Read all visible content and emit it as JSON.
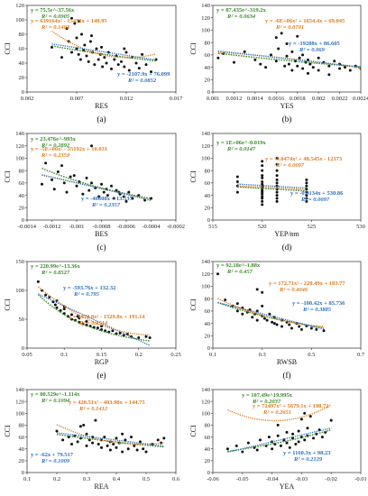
{
  "colors": {
    "green": "#3a8a2a",
    "orange": "#e07a1c",
    "blue": "#2b6fbf",
    "point": "#111111",
    "grid": "#dddddd"
  },
  "ylabel": "CCI",
  "chart_data": [
    {
      "type": "scatter",
      "panel": "(a)",
      "xlabel": "RES",
      "xlim": [
        0.002,
        0.017
      ],
      "ylim": [
        0,
        120
      ],
      "xticks": [
        "0.002",
        "0.007",
        "0.012",
        "0.017"
      ],
      "yticks": [
        "0",
        "20",
        "40",
        "60",
        "80",
        "100",
        "120"
      ],
      "equations": [
        {
          "color": "green",
          "fit": "exp",
          "text": "y = 75.5e^-37.56x",
          "r2": "R² = 0.0905",
          "a": 75.5,
          "b": -37.56
        },
        {
          "color": "orange",
          "fit": "poly",
          "text": "y = 639164x² - 15453x + 140.95",
          "r2": "R² = 0.1403",
          "coef": [
            140.95,
            -15453,
            639164
          ]
        },
        {
          "color": "blue",
          "fit": "lin",
          "text": "y = -2107.9x + 76.099",
          "r2": "R² = 0.0852",
          "coef": [
            76.099,
            -2107.9
          ]
        }
      ],
      "x": [
        0.0045,
        0.0055,
        0.006,
        0.0062,
        0.0065,
        0.0068,
        0.007,
        0.007,
        0.0072,
        0.0074,
        0.0075,
        0.0077,
        0.0078,
        0.008,
        0.0082,
        0.0084,
        0.0086,
        0.0088,
        0.009,
        0.0092,
        0.0094,
        0.0096,
        0.0098,
        0.01,
        0.0102,
        0.0105,
        0.0108,
        0.011,
        0.0112,
        0.0115,
        0.0118,
        0.012,
        0.0123,
        0.0126,
        0.013,
        0.0133,
        0.0136,
        0.014,
        0.0145,
        0.015,
        0.0065,
        0.0072,
        0.0085,
        0.0095,
        0.0118
      ],
      "y": [
        62,
        48,
        88,
        70,
        55,
        95,
        60,
        75,
        52,
        45,
        80,
        58,
        65,
        50,
        42,
        70,
        55,
        38,
        60,
        45,
        52,
        35,
        48,
        40,
        55,
        32,
        45,
        50,
        38,
        42,
        35,
        55,
        30,
        48,
        40,
        33,
        52,
        38,
        28,
        45,
        102,
        98,
        78,
        62,
        60
      ]
    },
    {
      "type": "scatter",
      "panel": "(b)",
      "xlabel": "YES",
      "xlim": [
        0.001,
        0.0024
      ],
      "ylim": [
        0,
        140
      ],
      "xticks": [
        "0.001",
        "0.0012",
        "0.0014",
        "0.0016",
        "0.0018",
        "0.002",
        "0.0022",
        "0.0024"
      ],
      "yticks": [
        "0",
        "20",
        "40",
        "60",
        "80",
        "100",
        "120",
        "140"
      ],
      "equations": [
        {
          "color": "green",
          "fit": "exp",
          "text": "y = 87.435e^-319.2x",
          "r2": "R² = 0.0634",
          "a": 87.435,
          "b": -319.2
        },
        {
          "color": "orange",
          "fit": "poly",
          "text": "y = -6E+06x² + 1654.4x + 69.045",
          "r2": "R² = 0.0701",
          "coef": [
            69.045,
            1654.4,
            -6000000
          ]
        },
        {
          "color": "blue",
          "fit": "lin",
          "text": "y = -19288x + 86.605",
          "r2": "R² = 0.069",
          "coef": [
            86.605,
            -19288
          ]
        }
      ],
      "x": [
        0.00105,
        0.0011,
        0.0012,
        0.0013,
        0.0014,
        0.00145,
        0.0015,
        0.00155,
        0.0016,
        0.0016,
        0.00162,
        0.00165,
        0.00168,
        0.0017,
        0.0017,
        0.00172,
        0.00175,
        0.00175,
        0.00178,
        0.0018,
        0.0018,
        0.00182,
        0.00185,
        0.00185,
        0.00188,
        0.0019,
        0.0019,
        0.00192,
        0.00195,
        0.002,
        0.002,
        0.00205,
        0.0021,
        0.0021,
        0.00215,
        0.0022,
        0.0022,
        0.00225,
        0.0023,
        0.00235,
        0.0024
      ],
      "y": [
        55,
        62,
        48,
        65,
        52,
        45,
        40,
        60,
        88,
        50,
        70,
        95,
        42,
        58,
        78,
        45,
        65,
        35,
        50,
        90,
        42,
        55,
        60,
        38,
        48,
        52,
        30,
        45,
        40,
        55,
        35,
        48,
        42,
        28,
        50,
        38,
        45,
        40,
        35,
        42,
        38
      ]
    },
    {
      "type": "scatter",
      "panel": "(c)",
      "xlabel": "BES",
      "xlim": [
        -0.0014,
        -0.0002
      ],
      "ylim": [
        0,
        140
      ],
      "xticks": [
        "-0.0014",
        "-0.0012",
        "-0.001",
        "-0.0008",
        "-0.0006",
        "-0.0004",
        "-0.0002"
      ],
      "yticks": [
        "0",
        "20",
        "40",
        "60",
        "80",
        "100",
        "120",
        "140"
      ],
      "equations": [
        {
          "color": "green",
          "fit": "exp",
          "text": "y = 23.476e^-993x",
          "r2": "R² = 0.2892",
          "a": 23.476,
          "b": -993
        },
        {
          "color": "orange",
          "fit": "poly",
          "text": "y = -5E+06x² - 55192x + 10.031",
          "r2": "R² = 0.2359",
          "coef": [
            10.031,
            -55192,
            -5000000
          ]
        },
        {
          "color": "blue",
          "fit": "lin",
          "text": "y = -46608x + 13.537",
          "r2": "R² = 0.2357",
          "coef": [
            13.537,
            -46608
          ]
        }
      ],
      "x": [
        -0.00128,
        -0.00125,
        -0.0012,
        -0.00118,
        -0.00115,
        -0.0011,
        -0.00108,
        -0.00105,
        -0.001,
        -0.00098,
        -0.00095,
        -0.00092,
        -0.0009,
        -0.00088,
        -0.00085,
        -0.00082,
        -0.0008,
        -0.00078,
        -0.00075,
        -0.00072,
        -0.0007,
        -0.00068,
        -0.00065,
        -0.00062,
        -0.0006,
        -0.00058,
        -0.00055,
        -0.0005,
        -0.00045,
        -0.0004,
        -0.00112,
        -0.00102,
        -0.00088,
        -0.00076,
        -0.00066
      ],
      "y": [
        58,
        92,
        65,
        50,
        78,
        60,
        45,
        70,
        55,
        62,
        42,
        68,
        48,
        120,
        52,
        38,
        58,
        45,
        40,
        55,
        35,
        48,
        42,
        38,
        30,
        45,
        35,
        40,
        32,
        35,
        88,
        72,
        60,
        50,
        45
      ]
    },
    {
      "type": "scatter",
      "panel": "(d)",
      "xlabel": "YEP/nm",
      "xlim": [
        515,
        530
      ],
      "ylim": [
        0,
        140
      ],
      "xticks": [
        "515",
        "520",
        "525",
        "530"
      ],
      "yticks": [
        "0",
        "20",
        "40",
        "60",
        "80",
        "100",
        "120",
        "140"
      ],
      "equations": [
        {
          "color": "green",
          "fit": "exp",
          "text": "y = 1E+06e^-0.019x",
          "r2": "R² = 0.0147",
          "a": 1000000,
          "b": -0.019
        },
        {
          "color": "orange",
          "fit": "poly",
          "text": "y = -0.0474x² + 48.545x - 12373",
          "r2": "R² = 0.0097",
          "coef": [
            -12373,
            48.545,
            -0.0474
          ]
        },
        {
          "color": "blue",
          "fit": "lin",
          "text": "y = -0.9134x + 530.86",
          "r2": "R² = 0.0097",
          "coef": [
            530.86,
            -0.9134
          ]
        }
      ],
      "x": [
        517.5,
        517.5,
        517.5,
        517.5,
        520,
        520,
        520,
        520,
        520,
        520,
        520,
        520,
        520,
        520,
        520,
        520,
        520,
        520,
        520,
        520,
        521.5,
        521.5,
        521.5,
        521.5,
        521.5,
        521.5,
        521.5,
        521.5,
        521.5,
        521.5,
        521.5,
        521.5,
        524.5,
        524.5,
        524.5,
        524.5,
        524.5,
        524.5,
        524.5,
        524.5
      ],
      "y": [
        70,
        62,
        55,
        45,
        95,
        88,
        80,
        72,
        68,
        62,
        58,
        55,
        52,
        48,
        45,
        42,
        38,
        35,
        30,
        25,
        100,
        90,
        80,
        72,
        65,
        60,
        55,
        50,
        45,
        40,
        35,
        30,
        65,
        60,
        55,
        50,
        45,
        40,
        35,
        30
      ]
    },
    {
      "type": "scatter",
      "panel": "(e)",
      "xlabel": "RGP",
      "xlim": [
        0.05,
        0.25
      ],
      "ylim": [
        0,
        150
      ],
      "xticks": [
        "0.05",
        "0.1",
        "0.15",
        "0.2",
        "0.25"
      ],
      "yticks": [
        "0",
        "50",
        "100",
        "150"
      ],
      "equations": [
        {
          "color": "green",
          "fit": "exp",
          "text": "y = 220.99e^-13.36x",
          "r2": "R² = 0.8527",
          "a": 220.99,
          "b": -13.36
        },
        {
          "color": "blue",
          "fit": "lin",
          "text": "y = -593.76x + 132.32",
          "r2": "R² = 0.795",
          "coef": [
            132.32,
            -593.76
          ]
        },
        {
          "color": "orange",
          "fit": "poly",
          "text": "y = 3470.8x² - 1529.8x + 191.14",
          "r2": "R² = 0.8514",
          "coef": [
            191.14,
            -1529.8,
            3470.8
          ]
        }
      ],
      "x": [
        0.065,
        0.07,
        0.075,
        0.08,
        0.085,
        0.088,
        0.09,
        0.095,
        0.1,
        0.1,
        0.105,
        0.11,
        0.11,
        0.115,
        0.12,
        0.12,
        0.125,
        0.13,
        0.13,
        0.135,
        0.14,
        0.145,
        0.15,
        0.15,
        0.155,
        0.16,
        0.165,
        0.17,
        0.175,
        0.18,
        0.185,
        0.19,
        0.2,
        0.21,
        0.215,
        0.09,
        0.1,
        0.118
      ],
      "y": [
        115,
        100,
        92,
        88,
        80,
        75,
        70,
        65,
        60,
        68,
        55,
        58,
        50,
        48,
        52,
        45,
        42,
        40,
        46,
        38,
        36,
        35,
        32,
        38,
        30,
        28,
        30,
        25,
        26,
        22,
        24,
        20,
        18,
        20,
        18,
        82,
        72,
        55
      ]
    },
    {
      "type": "scatter",
      "panel": "(f)",
      "xlabel": "RWSB",
      "xlim": [
        0.1,
        0.7
      ],
      "ylim": [
        0,
        140
      ],
      "xticks": [
        "0.1",
        "0.3",
        "0.5",
        "0.7"
      ],
      "yticks": [
        "0",
        "20",
        "40",
        "60",
        "80",
        "100",
        "120",
        "140"
      ],
      "equations": [
        {
          "color": "green",
          "fit": "exp",
          "text": "y = 92.18e^-1.88x",
          "r2": "R² = 0.457",
          "a": 92.18,
          "b": -1.88
        },
        {
          "color": "orange",
          "fit": "poly",
          "text": "y = 172.71x² - 220.49x + 103.77",
          "r2": "R² = 0.4046",
          "coef": [
            103.77,
            -220.49,
            172.71
          ]
        },
        {
          "color": "blue",
          "fit": "lin",
          "text": "y = -100.42x + 85.736",
          "r2": "R² = 0.3885",
          "coef": [
            85.736,
            -100.42
          ]
        }
      ],
      "x": [
        0.12,
        0.15,
        0.18,
        0.2,
        0.2,
        0.22,
        0.22,
        0.24,
        0.25,
        0.26,
        0.27,
        0.28,
        0.28,
        0.3,
        0.3,
        0.31,
        0.32,
        0.33,
        0.34,
        0.35,
        0.35,
        0.36,
        0.38,
        0.38,
        0.4,
        0.41,
        0.42,
        0.44,
        0.45,
        0.46,
        0.48,
        0.5,
        0.52,
        0.55,
        0.28,
        0.3
      ],
      "y": [
        120,
        78,
        68,
        72,
        60,
        65,
        55,
        58,
        62,
        50,
        55,
        60,
        45,
        52,
        68,
        48,
        45,
        55,
        42,
        40,
        50,
        38,
        45,
        35,
        42,
        38,
        32,
        40,
        35,
        30,
        36,
        32,
        30,
        28,
        95,
        90
      ]
    },
    {
      "type": "scatter",
      "panel": "(g)",
      "xlabel": "REA",
      "xlim": [
        0.1,
        0.6
      ],
      "ylim": [
        0,
        140
      ],
      "xticks": [
        "0.1",
        "0.2",
        "0.3",
        "0.4",
        "0.5",
        "0.6"
      ],
      "yticks": [
        "0",
        "20",
        "40",
        "60",
        "80",
        "100",
        "120",
        "140"
      ],
      "equations": [
        {
          "color": "green",
          "fit": "exp",
          "text": "y = 80.529e^-1.114x",
          "r2": "R² = 0.1094",
          "a": 80.529,
          "b": -1.114
        },
        {
          "color": "orange",
          "fit": "poly",
          "text": "y = 420.51x² - 403.98x + 144.75",
          "r2": "R² = 0.1412",
          "coef": [
            144.75,
            -403.98,
            420.51
          ]
        },
        {
          "color": "blue",
          "fit": "lin",
          "text": "y = -62x + 79.517",
          "r2": "R² = 0.1009",
          "coef": [
            79.517,
            -62
          ]
        }
      ],
      "x": [
        0.2,
        0.22,
        0.24,
        0.25,
        0.26,
        0.27,
        0.28,
        0.29,
        0.3,
        0.3,
        0.31,
        0.32,
        0.32,
        0.33,
        0.34,
        0.35,
        0.35,
        0.36,
        0.37,
        0.38,
        0.38,
        0.39,
        0.4,
        0.4,
        0.41,
        0.42,
        0.43,
        0.44,
        0.45,
        0.46,
        0.47,
        0.48,
        0.49,
        0.5,
        0.52,
        0.54,
        0.55,
        0.56,
        0.28,
        0.42
      ],
      "y": [
        70,
        55,
        60,
        48,
        62,
        52,
        58,
        80,
        65,
        45,
        55,
        60,
        50,
        88,
        48,
        55,
        42,
        60,
        45,
        52,
        38,
        48,
        58,
        42,
        50,
        35,
        55,
        40,
        60,
        45,
        38,
        52,
        40,
        35,
        48,
        55,
        50,
        58,
        78,
        65
      ]
    },
    {
      "type": "scatter",
      "panel": "(h)",
      "xlabel": "YEA",
      "xlim": [
        -0.06,
        -0.01
      ],
      "ylim": [
        0,
        140
      ],
      "xticks": [
        "-0.06",
        "-0.05",
        "-0.04",
        "-0.03",
        "-0.02",
        "-0.01"
      ],
      "yticks": [
        "0",
        "20",
        "40",
        "60",
        "80",
        "100",
        "120",
        "140"
      ],
      "equations": [
        {
          "color": "green",
          "fit": "exp",
          "text": "y = 107.49e^19.995x",
          "r2": "R² = 0.2037",
          "a": 107.49,
          "b": 19.995
        },
        {
          "color": "orange",
          "fit": "poly",
          "text": "y = 72497x² + 5679.1x + 198.72",
          "r2": "R² = 0.2651",
          "coef": [
            198.72,
            5679.1,
            72497
          ]
        },
        {
          "color": "blue",
          "fit": "lin",
          "text": "y = 1160.3x + 98.23",
          "r2": "R² = 0.2129",
          "coef": [
            98.23,
            1160.3
          ]
        }
      ],
      "x": [
        -0.055,
        -0.052,
        -0.05,
        -0.048,
        -0.046,
        -0.045,
        -0.044,
        -0.042,
        -0.041,
        -0.04,
        -0.04,
        -0.039,
        -0.038,
        -0.037,
        -0.036,
        -0.035,
        -0.035,
        -0.034,
        -0.033,
        -0.033,
        -0.032,
        -0.031,
        -0.031,
        -0.03,
        -0.03,
        -0.029,
        -0.028,
        -0.028,
        -0.027,
        -0.026,
        -0.025,
        -0.024,
        -0.023,
        -0.022,
        -0.02,
        -0.038,
        -0.029
      ],
      "y": [
        40,
        45,
        35,
        50,
        42,
        38,
        55,
        45,
        60,
        40,
        52,
        48,
        62,
        45,
        55,
        50,
        68,
        42,
        58,
        65,
        48,
        70,
        52,
        60,
        90,
        55,
        62,
        75,
        95,
        58,
        65,
        72,
        60,
        68,
        88,
        80,
        100
      ]
    }
  ]
}
